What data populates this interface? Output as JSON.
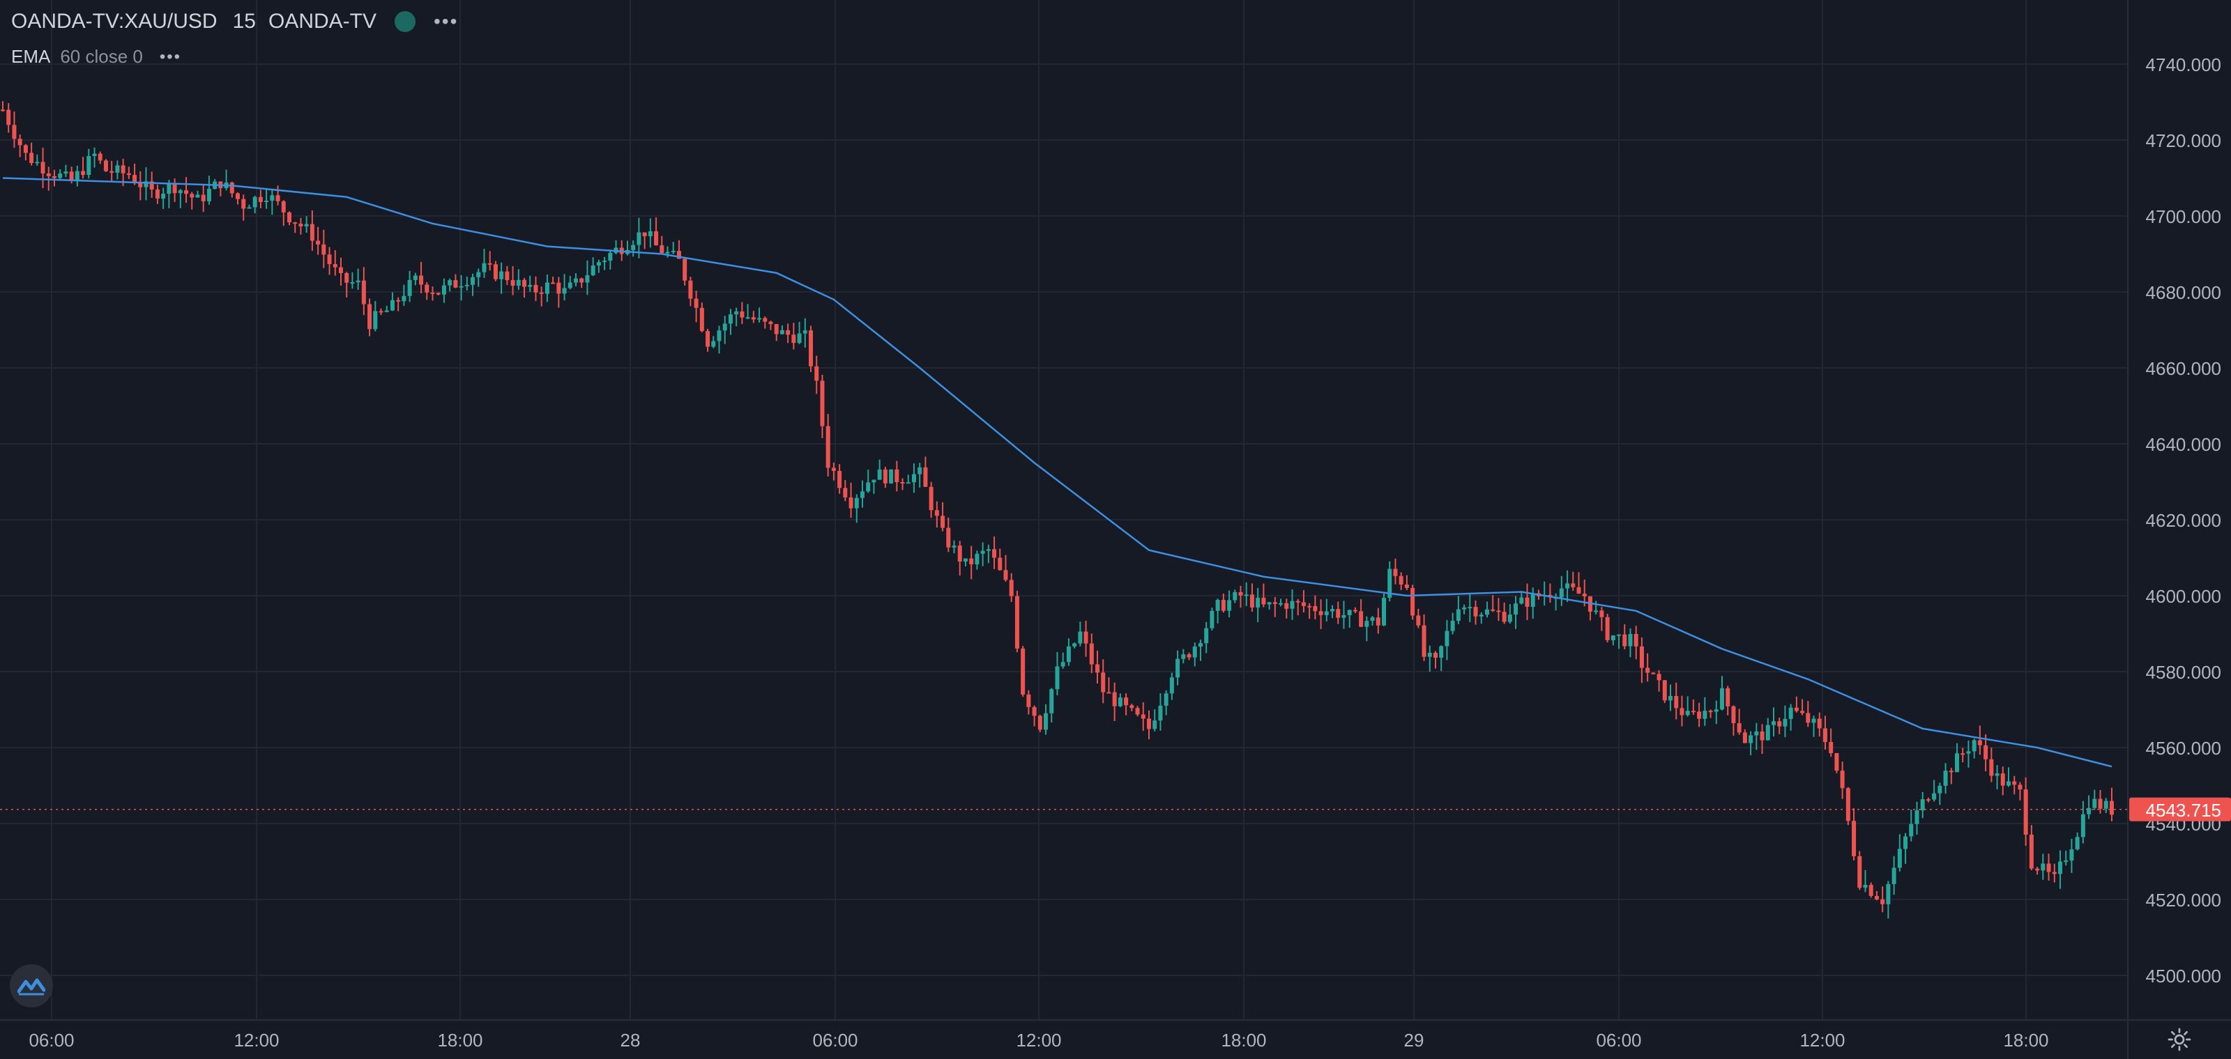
{
  "legend": {
    "symbol": "OANDA-TV:XAU/USD",
    "interval": "15",
    "source": "OANDA-TV",
    "status_color": "#22ab94",
    "more": "•••"
  },
  "indicator": {
    "name": "EMA",
    "params": "60 close 0",
    "more": "•••"
  },
  "colors": {
    "up": "#26a69a",
    "down": "#ef5350",
    "ema": "#2962ff",
    "ema_line": "#3d8fe0",
    "background": "#161a25",
    "grid": "#232733",
    "text": "#b2b5be"
  },
  "icons": {
    "logo": "tradingview-logo-icon",
    "settings": "gear-icon"
  },
  "chart_data": {
    "type": "candlestick",
    "x_tick_labels": [
      "06:00",
      "12:00",
      "18:00",
      "28",
      "06:00",
      "12:00",
      "18:00",
      "29",
      "06:00",
      "12:00",
      "18:00"
    ],
    "y_tick_labels": [
      "4740.000",
      "4720.000",
      "4700.000",
      "4680.000",
      "4660.000",
      "4640.000",
      "4620.000",
      "4600.000",
      "4580.000",
      "4560.000",
      "4540.000",
      "4520.000",
      "4500.000"
    ],
    "ylim": [
      4494,
      4748
    ],
    "last_price": "4543.715",
    "last_price_value": 4543.715,
    "candle_count": 162,
    "close_path": [
      [
        0,
        4728
      ],
      [
        4,
        4716
      ],
      [
        8,
        4712
      ],
      [
        12,
        4709
      ],
      [
        16,
        4716
      ],
      [
        18,
        4712
      ],
      [
        22,
        4711
      ],
      [
        26,
        4706
      ],
      [
        30,
        4708
      ],
      [
        34,
        4704
      ],
      [
        38,
        4709
      ],
      [
        42,
        4703
      ],
      [
        46,
        4706
      ],
      [
        50,
        4700
      ],
      [
        54,
        4695
      ],
      [
        56,
        4690
      ],
      [
        59,
        4683
      ],
      [
        62,
        4682
      ],
      [
        64,
        4672
      ],
      [
        68,
        4676
      ],
      [
        70,
        4680
      ],
      [
        72,
        4683
      ],
      [
        76,
        4680
      ],
      [
        80,
        4683
      ],
      [
        84,
        4686
      ],
      [
        88,
        4684
      ],
      [
        92,
        4680
      ],
      [
        96,
        4682
      ],
      [
        98,
        4680
      ],
      [
        100,
        4682
      ],
      [
        104,
        4688
      ],
      [
        108,
        4692
      ],
      [
        112,
        4696
      ],
      [
        114,
        4692
      ],
      [
        118,
        4688
      ],
      [
        120,
        4680
      ],
      [
        123,
        4667
      ],
      [
        128,
        4675
      ],
      [
        132,
        4672
      ],
      [
        136,
        4669
      ],
      [
        140,
        4668
      ],
      [
        142,
        4655
      ],
      [
        144,
        4635
      ],
      [
        148,
        4625
      ],
      [
        152,
        4632
      ],
      [
        156,
        4631
      ],
      [
        160,
        4632
      ],
      [
        164,
        4616
      ],
      [
        168,
        4608
      ],
      [
        172,
        4612
      ],
      [
        176,
        4600
      ],
      [
        178,
        4575
      ],
      [
        181,
        4566
      ],
      [
        184,
        4580
      ],
      [
        188,
        4590
      ],
      [
        192,
        4575
      ],
      [
        196,
        4570
      ],
      [
        200,
        4565
      ],
      [
        204,
        4580
      ],
      [
        208,
        4587
      ],
      [
        212,
        4597
      ],
      [
        216,
        4600
      ],
      [
        220,
        4597
      ],
      [
        224,
        4598
      ],
      [
        228,
        4597
      ],
      [
        232,
        4596
      ],
      [
        236,
        4594
      ],
      [
        240,
        4593
      ],
      [
        242,
        4606
      ],
      [
        245,
        4603
      ],
      [
        248,
        4584
      ],
      [
        250,
        4582
      ],
      [
        254,
        4598
      ],
      [
        258,
        4596
      ],
      [
        262,
        4595
      ],
      [
        265,
        4598
      ],
      [
        268,
        4600
      ],
      [
        272,
        4602
      ],
      [
        276,
        4600
      ],
      [
        280,
        4590
      ],
      [
        284,
        4588
      ],
      [
        286,
        4582
      ],
      [
        290,
        4574
      ],
      [
        294,
        4568
      ],
      [
        298,
        4570
      ],
      [
        300,
        4574
      ],
      [
        304,
        4562
      ],
      [
        308,
        4564
      ],
      [
        312,
        4570
      ],
      [
        316,
        4566
      ],
      [
        319,
        4560
      ],
      [
        321,
        4548
      ],
      [
        324,
        4525
      ],
      [
        328,
        4520
      ],
      [
        330,
        4528
      ],
      [
        333,
        4540
      ],
      [
        336,
        4548
      ],
      [
        340,
        4555
      ],
      [
        344,
        4562
      ],
      [
        348,
        4552
      ],
      [
        352,
        4548
      ],
      [
        354,
        4530
      ],
      [
        358,
        4525
      ],
      [
        362,
        4538
      ],
      [
        364,
        4546
      ],
      [
        368,
        4543.715
      ]
    ],
    "series": [
      {
        "type": "ema",
        "points": [
          [
            0,
            4710
          ],
          [
            40,
            4708
          ],
          [
            60,
            4705
          ],
          [
            75,
            4698
          ],
          [
            95,
            4692
          ],
          [
            115,
            4690
          ],
          [
            135,
            4685
          ],
          [
            145,
            4678
          ],
          [
            160,
            4660
          ],
          [
            180,
            4635
          ],
          [
            200,
            4612
          ],
          [
            220,
            4605
          ],
          [
            245,
            4600
          ],
          [
            265,
            4601
          ],
          [
            285,
            4596
          ],
          [
            300,
            4586
          ],
          [
            315,
            4578
          ],
          [
            335,
            4565
          ],
          [
            355,
            4560
          ],
          [
            368,
            4555
          ]
        ]
      }
    ]
  }
}
